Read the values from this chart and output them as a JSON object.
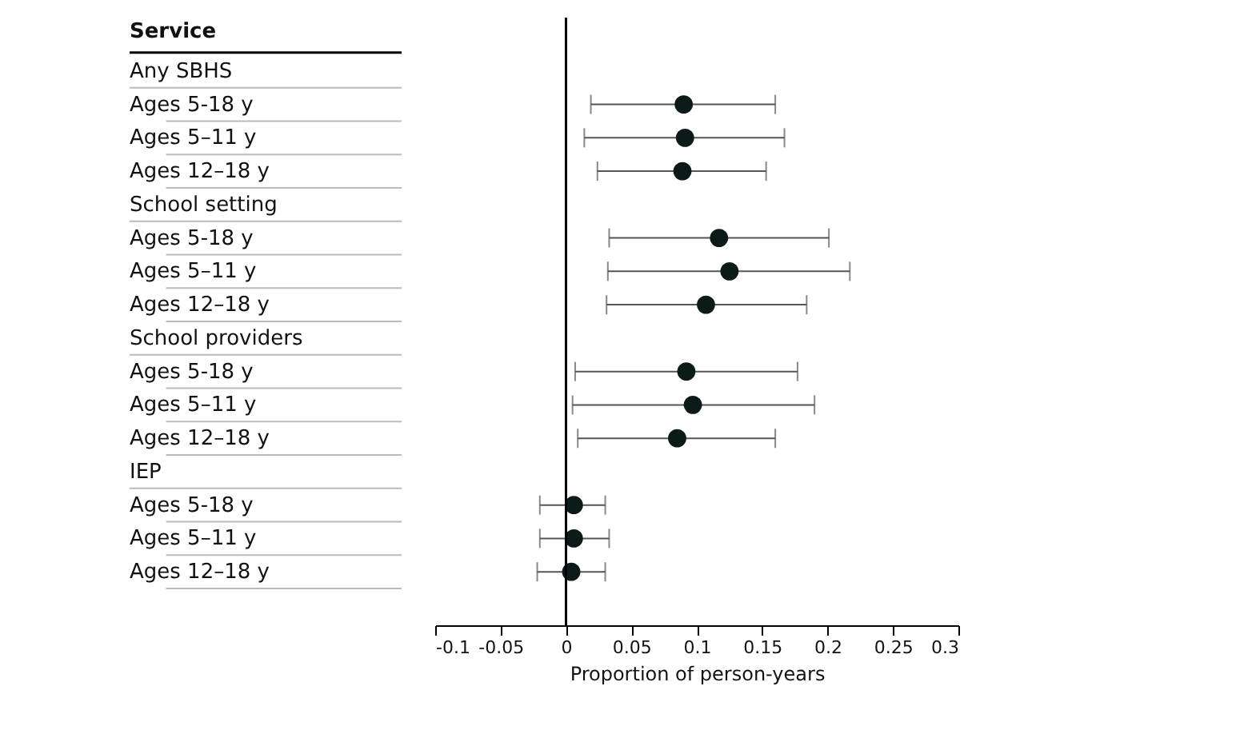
{
  "chart_data": {
    "type": "scatter",
    "ylabel": "Service",
    "xlabel": "Proportion of person-years",
    "categories": [
      "Any SBHS",
      "Ages 5-18 y",
      "Ages 5–11 y",
      "Ages 12–18 y",
      "School setting",
      "Ages 5-18 y",
      "Ages 5–11 y",
      "Ages 12–18 y",
      "School providers",
      "Ages 5-18 y",
      "Ages 5–11 y",
      "Ages 12–18 y",
      "IEP",
      "Ages 5-18 y",
      "Ages 5–11 y",
      "Ages 12–18 y"
    ],
    "series": [
      {
        "color": "#0d1a1a",
        "values": [
          null,
          0.09,
          0.091,
          0.089,
          null,
          0.117,
          0.125,
          0.107,
          null,
          0.092,
          0.097,
          0.085,
          null,
          0.006,
          0.006,
          0.004
        ],
        "errors": [
          null,
          [
            0.019,
            0.16
          ],
          [
            0.014,
            0.167
          ],
          [
            0.024,
            0.153
          ],
          null,
          [
            0.033,
            0.201
          ],
          [
            0.032,
            0.217
          ],
          [
            0.031,
            0.184
          ],
          null,
          [
            0.007,
            0.177
          ],
          [
            0.005,
            0.19
          ],
          [
            0.009,
            0.16
          ],
          null,
          [
            -0.02,
            0.03
          ],
          [
            -0.02,
            0.033
          ],
          [
            -0.022,
            0.03
          ]
        ]
      }
    ],
    "orientation": "horizontal",
    "xlim": [
      -0.1,
      0.3
    ],
    "xticks": [
      -0.1,
      -0.05,
      0,
      0.05,
      0.1,
      0.15,
      0.2,
      0.25,
      0.3
    ],
    "ref_lines": [
      {
        "axis": "x",
        "value": 0,
        "color": "#000000"
      }
    ],
    "marker": "circle",
    "grid": false
  }
}
